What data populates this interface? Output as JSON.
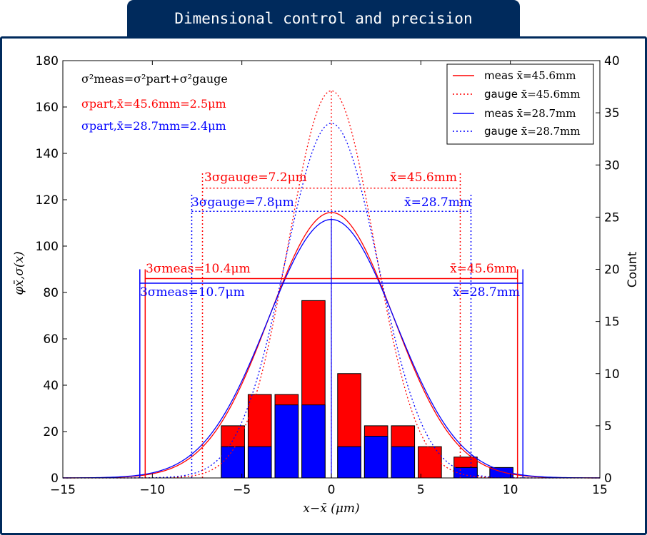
{
  "page_title": "Dimensional control and precision",
  "chart_data": {
    "type": "bar",
    "xlabel": "x−x̄ (μm)",
    "ylabel_left": "φx̄,σ(x)",
    "ylabel_right": "Count",
    "xlim": [
      -15,
      15
    ],
    "ylim_left": [
      0,
      180
    ],
    "ylim_right": [
      0,
      40
    ],
    "x_ticks": [
      "−15",
      "−10",
      "−5",
      "0",
      "5",
      "10",
      "15"
    ],
    "y_ticks_left": [
      "0",
      "20",
      "40",
      "60",
      "80",
      "100",
      "120",
      "140",
      "160",
      "180"
    ],
    "y_ticks_right": [
      "0",
      "5",
      "10",
      "15",
      "20",
      "25",
      "30",
      "35",
      "40"
    ],
    "histogram": {
      "bin_centers": [
        -5.5,
        -4.0,
        -2.5,
        -1.0,
        1.0,
        2.5,
        4.0,
        5.5,
        7.5,
        9.5
      ],
      "bar_width": 1.3,
      "counts_red": [
        5,
        8,
        8,
        17,
        10,
        5,
        5,
        3,
        2,
        0
      ],
      "counts_blue": [
        3,
        3,
        7,
        7,
        3,
        4,
        3,
        0,
        1,
        1
      ]
    },
    "gaussians": [
      {
        "name": "meas x̄=45.6mm",
        "color": "#ff0000",
        "style": "solid",
        "peak": 114.5,
        "sigma": 3.47
      },
      {
        "name": "gauge x̄=45.6mm",
        "color": "#ff0000",
        "style": "dotted",
        "peak": 167,
        "sigma": 2.4
      },
      {
        "name": "meas x̄=28.7mm",
        "color": "#0000ff",
        "style": "solid",
        "peak": 111.5,
        "sigma": 3.57
      },
      {
        "name": "gauge x̄=28.7mm",
        "color": "#0000ff",
        "style": "dotted",
        "peak": 153,
        "sigma": 2.6
      }
    ],
    "colors": {
      "red": "#ff0000",
      "blue": "#0000ff",
      "title_bar": "#002a5c"
    },
    "legend_position": "top-right",
    "legend": [
      {
        "label_prefix": "meas ",
        "label_math": "x̄=45.6mm"
      },
      {
        "label_prefix": "gauge ",
        "label_math": "x̄=45.6mm"
      },
      {
        "label_prefix": "meas ",
        "label_math": "x̄=28.7mm"
      },
      {
        "label_prefix": "gauge ",
        "label_math": "x̄=28.7mm"
      }
    ],
    "annotations": {
      "formula": "σ²meas=σ²part+σ²gauge",
      "sigma_part_red": "σpart,x̄=45.6mm=2.5μm",
      "sigma_part_blue": "σpart,x̄=28.7mm=2.4μm",
      "gauge_red_left": "3σgauge=7.2μm",
      "gauge_red_right": "x̄=45.6mm",
      "gauge_blue_left": "3σgauge=7.8μm",
      "gauge_blue_right": "x̄=28.7mm",
      "meas_red_left": "3σmeas=10.4μm",
      "meas_red_right": "x̄=45.6mm",
      "meas_blue_left": "3σmeas=10.7μm",
      "meas_blue_right": "x̄=28.7mm"
    }
  }
}
